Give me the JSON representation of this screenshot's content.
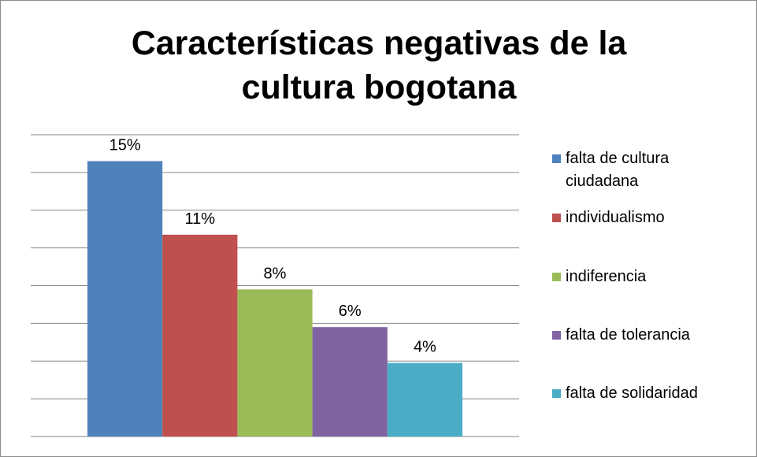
{
  "chart_data": {
    "type": "bar",
    "title": "Características negativas de la cultura bogotana",
    "categories": [
      "falta de cultura ciudadana",
      "individualismo",
      "indiferencia",
      "falta de tolerancia",
      "falta de solidaridad"
    ],
    "values": [
      14.6,
      10.7,
      7.8,
      5.8,
      3.9
    ],
    "value_labels": [
      "15%",
      "11%",
      "8%",
      "6%",
      "4%"
    ],
    "colors": [
      "#4f81bd",
      "#c0504d",
      "#9bbb59",
      "#8064a2",
      "#4bacc6"
    ],
    "ylim": [
      0,
      16
    ],
    "yticks": [
      0,
      2,
      4,
      6,
      8,
      10,
      12,
      14,
      16
    ],
    "grid": true,
    "legend": "right"
  }
}
